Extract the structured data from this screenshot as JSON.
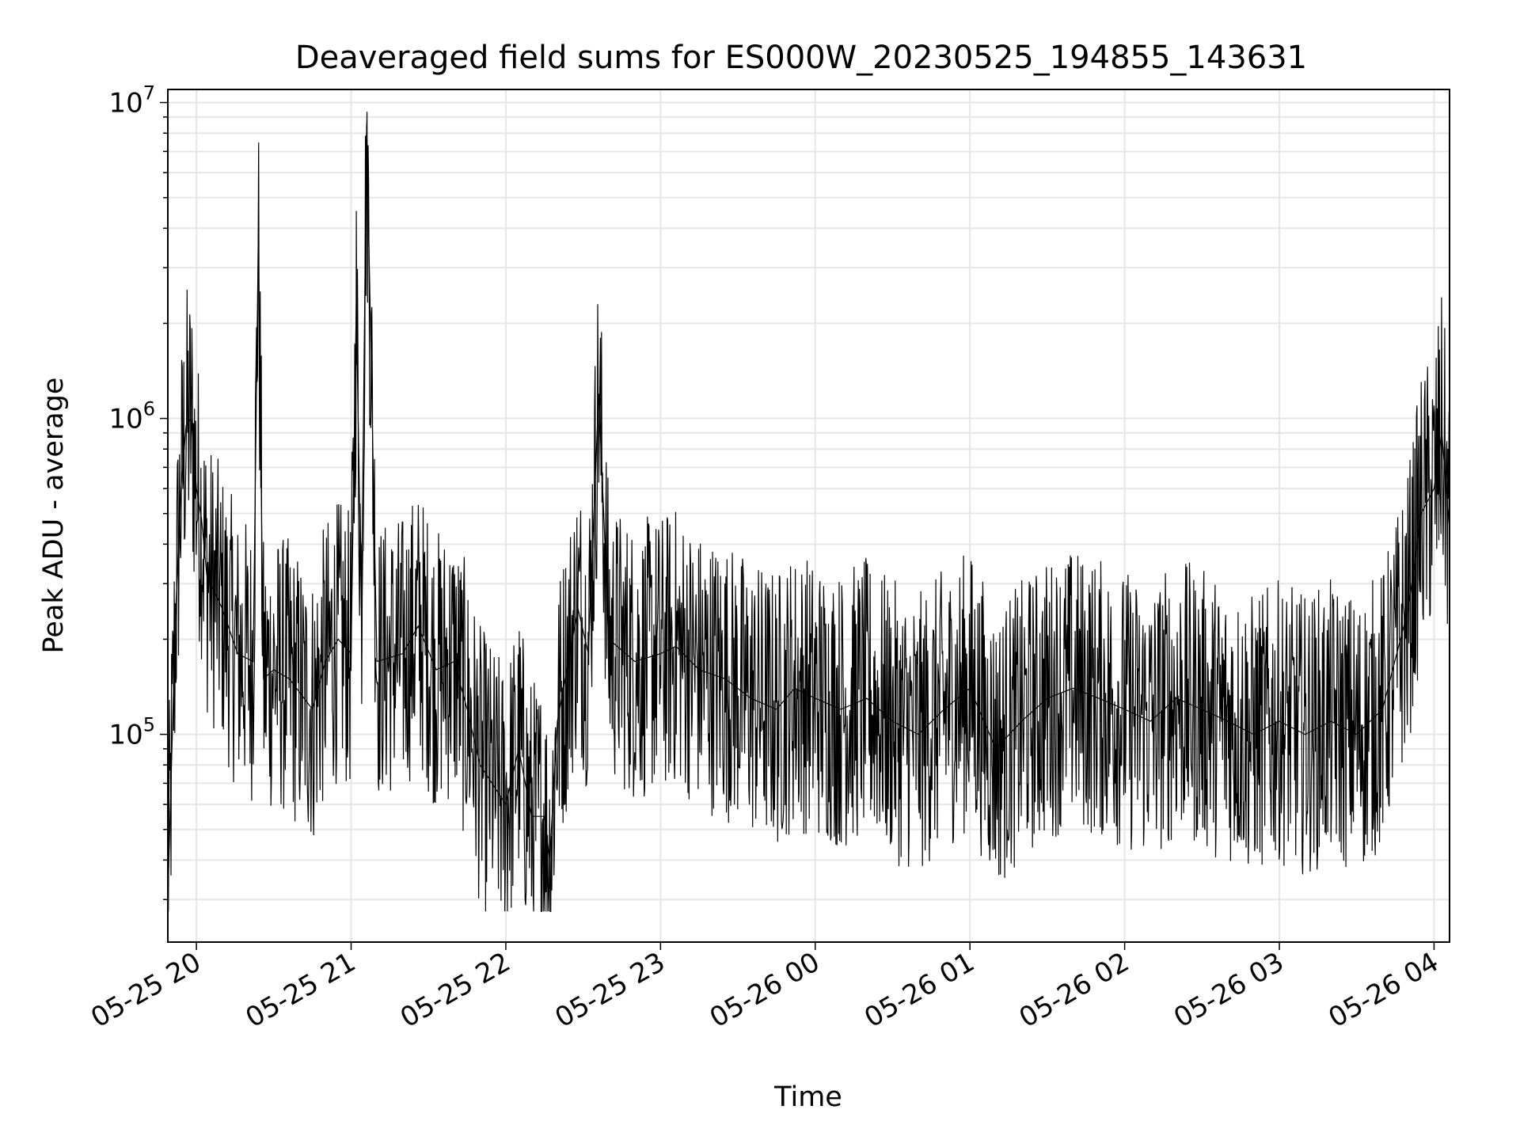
{
  "chart_data": {
    "type": "line",
    "title": "Deaveraged field sums for ES000W_20230525_194855_143631",
    "xlabel": "Time",
    "ylabel": "Peak ADU - average",
    "yscale": "log",
    "ylim": [
      22000,
      11000000
    ],
    "xlim": [
      "2023-05-25T19:48:55",
      "2023-05-26T04:06:00"
    ],
    "grid": true,
    "line_color": "#000000",
    "x_ticks": [
      "05-25 20",
      "05-25 21",
      "05-25 22",
      "05-25 23",
      "05-26 00",
      "05-26 01",
      "05-26 02",
      "05-26 03",
      "05-26 04"
    ],
    "y_ticks": [
      {
        "base": "10",
        "exp": "5"
      },
      {
        "base": "10",
        "exp": "6"
      },
      {
        "base": "10",
        "exp": "7"
      }
    ],
    "series": [
      {
        "x": [
          "2023-05-25T19:48:55",
          "2023-05-25T19:52:00",
          "2023-05-25T19:54:00",
          "2023-05-25T19:56:00",
          "2023-05-25T19:58:00",
          "2023-05-25T20:00:00",
          "2023-05-25T20:02:00",
          "2023-05-25T20:04:00",
          "2023-05-25T20:10:00",
          "2023-05-25T20:16:00",
          "2023-05-25T20:22:00",
          "2023-05-25T20:24:00",
          "2023-05-25T20:26:00",
          "2023-05-25T20:30:00",
          "2023-05-25T20:36:00",
          "2023-05-25T20:45:00",
          "2023-05-25T20:50:00",
          "2023-05-25T20:55:00",
          "2023-05-25T21:00:00",
          "2023-05-25T21:02:00",
          "2023-05-25T21:04:00",
          "2023-05-25T21:06:00",
          "2023-05-25T21:10:00",
          "2023-05-25T21:20:00",
          "2023-05-25T21:26:00",
          "2023-05-25T21:33:00",
          "2023-05-25T21:40:00",
          "2023-05-25T21:45:00",
          "2023-05-25T21:50:00",
          "2023-05-25T22:00:00",
          "2023-05-25T22:05:00",
          "2023-05-25T22:10:00",
          "2023-05-25T22:15:00",
          "2023-05-25T22:17:00",
          "2023-05-25T22:20:00",
          "2023-05-25T22:28:00",
          "2023-05-25T22:32:00",
          "2023-05-25T22:36:00",
          "2023-05-25T22:40:00",
          "2023-05-25T22:50:00",
          "2023-05-25T23:00:00",
          "2023-05-25T23:06:00",
          "2023-05-25T23:15:00",
          "2023-05-25T23:25:00",
          "2023-05-25T23:35:00",
          "2023-05-25T23:45:00",
          "2023-05-25T23:52:00",
          "2023-05-26T00:00:00",
          "2023-05-26T00:10:00",
          "2023-05-26T00:20:00",
          "2023-05-26T00:30:00",
          "2023-05-26T00:40:00",
          "2023-05-26T00:50:00",
          "2023-05-26T01:00:00",
          "2023-05-26T01:10:00",
          "2023-05-26T01:20:00",
          "2023-05-26T01:30:00",
          "2023-05-26T01:40:00",
          "2023-05-26T01:50:00",
          "2023-05-26T02:00:00",
          "2023-05-26T02:10:00",
          "2023-05-26T02:20:00",
          "2023-05-26T02:30:00",
          "2023-05-26T02:40:00",
          "2023-05-26T02:50:00",
          "2023-05-26T03:00:00",
          "2023-05-26T03:10:00",
          "2023-05-26T03:20:00",
          "2023-05-26T03:30:00",
          "2023-05-26T03:40:00",
          "2023-05-26T03:50:00",
          "2023-05-26T03:55:00",
          "2023-05-26T04:00:00",
          "2023-05-26T04:03:00",
          "2023-05-26T04:06:00"
        ],
        "y": [
          30000,
          250000,
          600000,
          950000,
          1000000,
          600000,
          480000,
          320000,
          250000,
          180000,
          170000,
          3800000,
          150000,
          160000,
          150000,
          120000,
          170000,
          200000,
          180000,
          2300000,
          250000,
          8500000,
          170000,
          180000,
          220000,
          160000,
          170000,
          120000,
          80000,
          60000,
          90000,
          55000,
          55000,
          40000,
          110000,
          250000,
          180000,
          1200000,
          200000,
          170000,
          180000,
          190000,
          160000,
          150000,
          130000,
          120000,
          140000,
          130000,
          120000,
          130000,
          110000,
          100000,
          120000,
          140000,
          90000,
          110000,
          130000,
          140000,
          130000,
          120000,
          110000,
          130000,
          120000,
          110000,
          100000,
          110000,
          100000,
          110000,
          100000,
          120000,
          250000,
          500000,
          600000,
          900000,
          450000
        ]
      }
    ]
  }
}
